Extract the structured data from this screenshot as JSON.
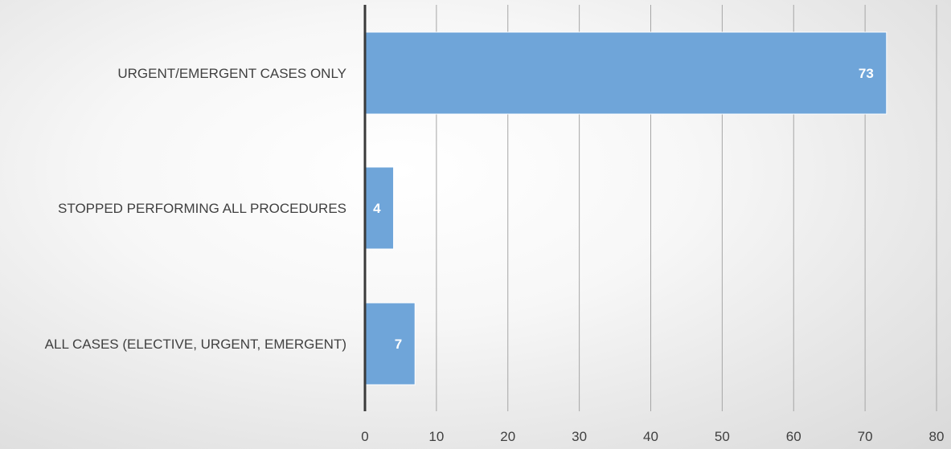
{
  "chart_data": {
    "type": "bar",
    "orientation": "horizontal",
    "categories": [
      "URGENT/EMERGENT CASES ONLY",
      "STOPPED PERFORMING ALL PROCEDURES",
      "ALL CASES (ELECTIVE, URGENT, EMERGENT)"
    ],
    "values": [
      73,
      4,
      7
    ],
    "title": "",
    "xlabel": "",
    "ylabel": "",
    "xlim": [
      0,
      80
    ],
    "xticks": [
      "0",
      "10",
      "20",
      "30",
      "40",
      "50",
      "60",
      "70",
      "80"
    ],
    "data_labels": [
      "73",
      "4",
      "7"
    ],
    "grid": "vertical",
    "legend": "none",
    "colors": {
      "bar": "#6fa5d9",
      "bar_border": "#ffffff",
      "grid": "#a6a6a6",
      "axis": "#3a3a3a",
      "label": "#404040",
      "data_label": "#ffffff"
    }
  }
}
